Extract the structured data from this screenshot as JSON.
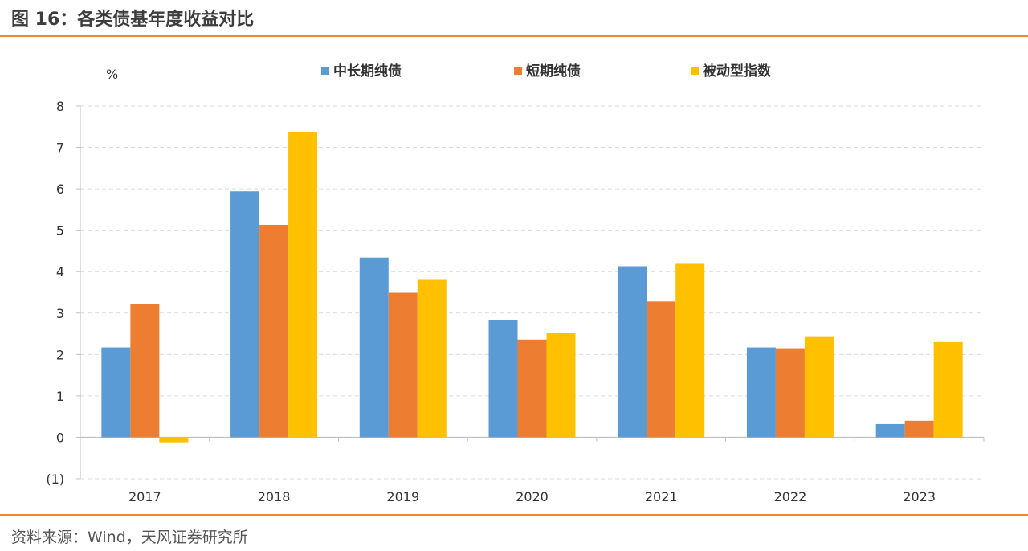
{
  "figure": {
    "title": "图 16：各类债基年度收益对比",
    "source": "资料来源：Wind，天风证券研究所",
    "rule_color": "#E88A2E"
  },
  "chart_data": {
    "type": "bar",
    "unit_label": "%",
    "categories": [
      "2017",
      "2018",
      "2019",
      "2020",
      "2021",
      "2022",
      "2023"
    ],
    "series": [
      {
        "name": "中长期纯债",
        "color": "#5B9BD5",
        "values": [
          2.17,
          5.94,
          4.34,
          2.84,
          4.13,
          2.17,
          0.32
        ]
      },
      {
        "name": "短期纯债",
        "color": "#ED7D31",
        "values": [
          3.21,
          5.13,
          3.49,
          2.36,
          3.28,
          2.15,
          0.4
        ]
      },
      {
        "name": "被动型指数",
        "color": "#FFC000",
        "values": [
          -0.12,
          7.38,
          3.82,
          2.53,
          4.19,
          2.44,
          2.3
        ]
      }
    ],
    "ylim": [
      -1,
      8
    ],
    "yticks": [
      {
        "value": 8,
        "label": "8"
      },
      {
        "value": 7,
        "label": "7"
      },
      {
        "value": 6,
        "label": "6"
      },
      {
        "value": 5,
        "label": "5"
      },
      {
        "value": 4,
        "label": "4"
      },
      {
        "value": 3,
        "label": "3"
      },
      {
        "value": 2,
        "label": "2"
      },
      {
        "value": 1,
        "label": "1"
      },
      {
        "value": 0,
        "label": "0"
      },
      {
        "value": -1,
        "label": "(1)"
      }
    ],
    "grid": true,
    "legend_position": "top"
  }
}
